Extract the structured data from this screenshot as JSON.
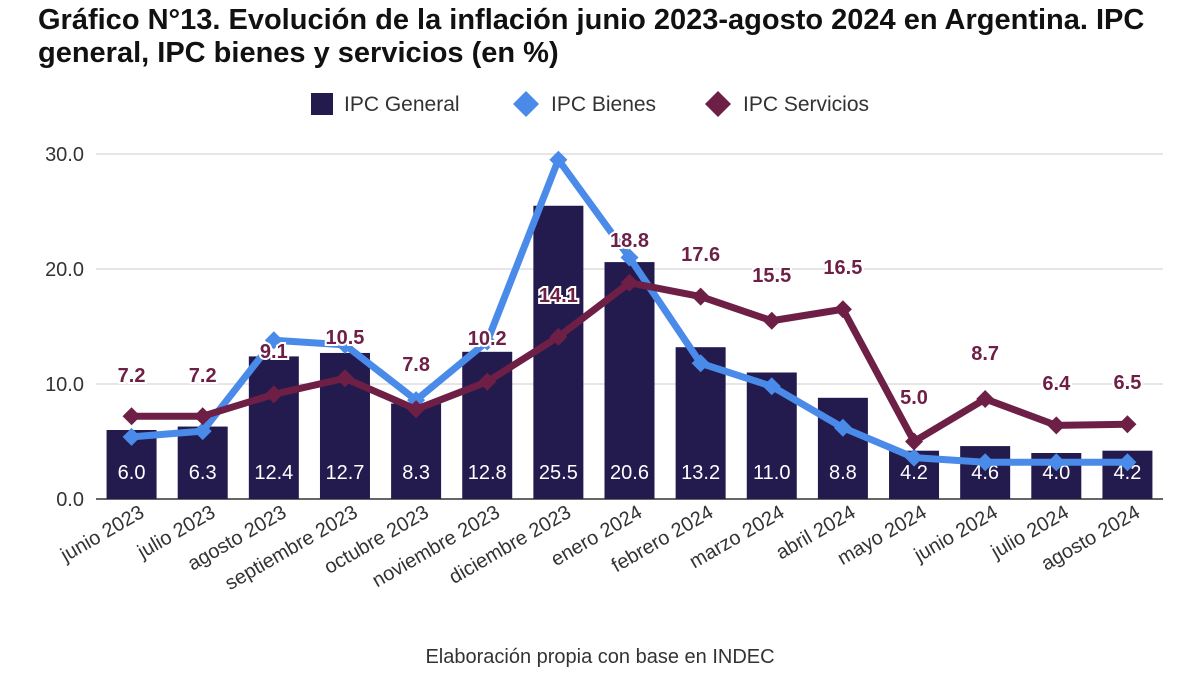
{
  "title": "Gráfico N°13. Evolución de la inflación junio 2023-agosto 2024 en Argentina. IPC general, IPC bienes y servicios (en %)",
  "source": "Elaboración propia con base en INDEC",
  "colors": {
    "general": "#231a4e",
    "bienes": "#4a8ae8",
    "servicios": "#6e1f46",
    "grid": "#cccccc"
  },
  "chart_data": {
    "type": "bar",
    "categories": [
      "junio 2023",
      "julio 2023",
      "agosto 2023",
      "septiembre 2023",
      "octubre 2023",
      "noviembre 2023",
      "diciembre 2023",
      "enero 2024",
      "febrero 2024",
      "marzo 2024",
      "abril 2024",
      "mayo 2024",
      "junio 2024",
      "julio 2024",
      "agosto 2024"
    ],
    "ylim": [
      0,
      30
    ],
    "yticks": [
      0,
      10,
      20,
      30
    ],
    "ytick_labels": [
      "0.0",
      "10.0",
      "20.0",
      "30.0"
    ],
    "grid": true,
    "legend_position": "top",
    "series": [
      {
        "name": "IPC General",
        "type": "bar",
        "values": [
          6.0,
          6.3,
          12.4,
          12.7,
          8.3,
          12.8,
          25.5,
          20.6,
          13.2,
          11.0,
          8.8,
          4.2,
          4.6,
          4.0,
          4.2
        ],
        "labels": [
          "6.0",
          "6.3",
          "12.4",
          "12.7",
          "8.3",
          "12.8",
          "25.5",
          "20.6",
          "13.2",
          "11.0",
          "8.8",
          "4.2",
          "4.6",
          "4.0",
          "4.2"
        ]
      },
      {
        "name": "IPC Bienes",
        "type": "line",
        "values": [
          5.4,
          5.9,
          13.8,
          13.4,
          8.6,
          13.7,
          29.5,
          21.0,
          11.8,
          9.8,
          6.2,
          3.6,
          3.2,
          3.2,
          3.2
        ]
      },
      {
        "name": "IPC Servicios",
        "type": "line",
        "values": [
          7.2,
          7.2,
          9.1,
          10.5,
          7.8,
          10.2,
          14.1,
          18.8,
          17.6,
          15.5,
          16.5,
          5.0,
          8.7,
          6.4,
          6.5
        ],
        "labels": [
          "7.2",
          "7.2",
          "9.1",
          "10.5",
          "7.8",
          "10.2",
          "14.1",
          "18.8",
          "17.6",
          "15.5",
          "16.5",
          "5.0",
          "8.7",
          "6.4",
          "6.5"
        ]
      }
    ]
  }
}
